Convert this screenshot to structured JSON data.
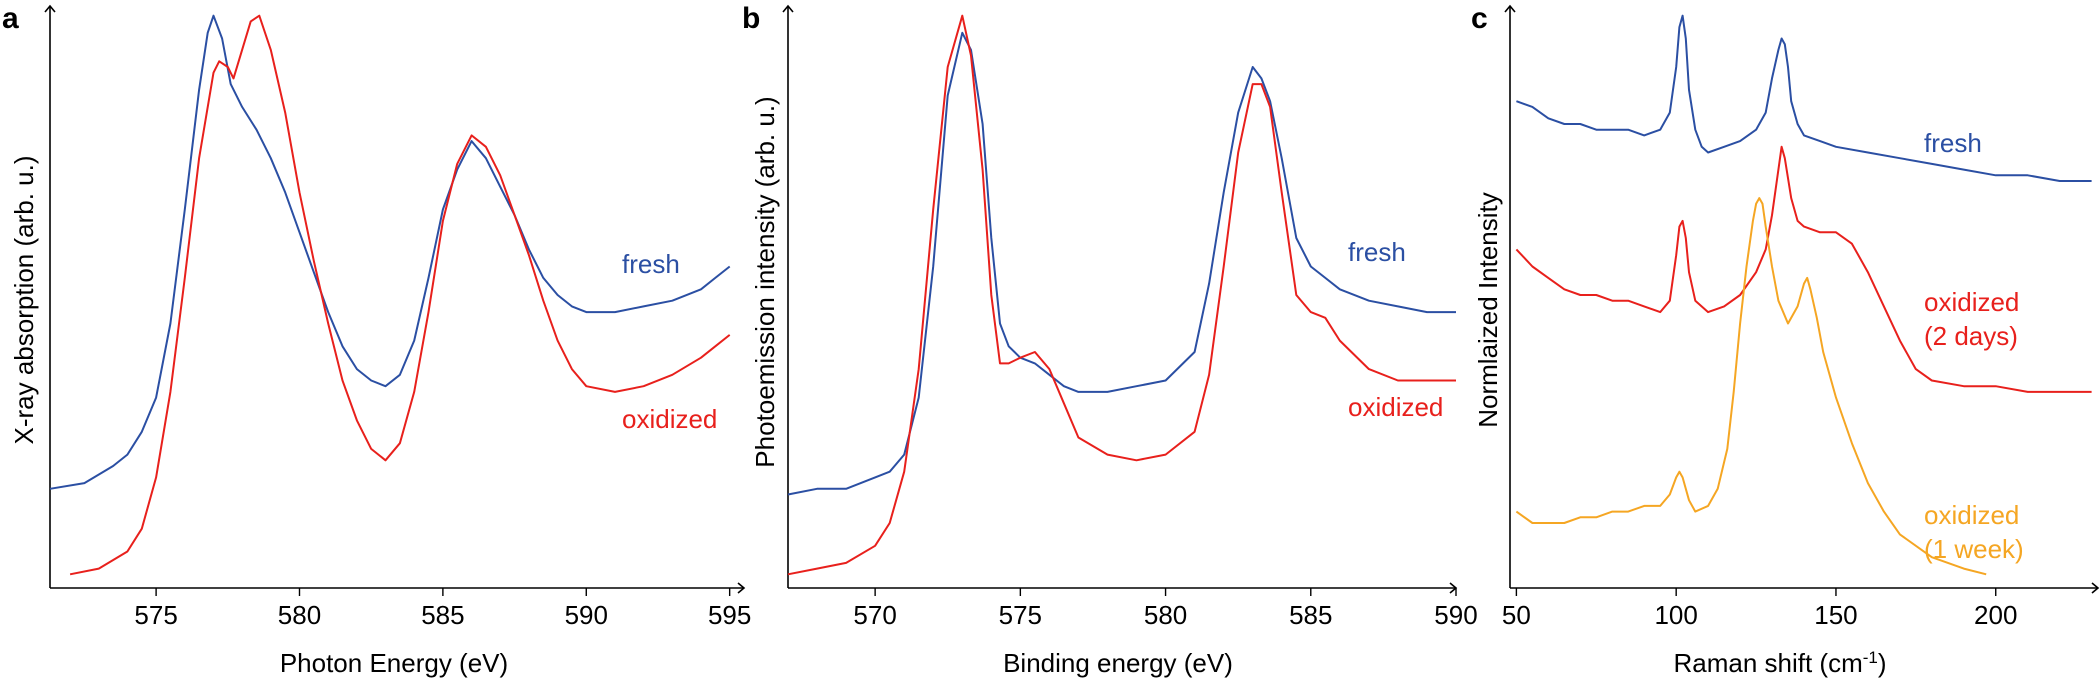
{
  "chart_data": [
    {
      "type": "line",
      "panel": "a",
      "xlabel": "Photon Energy (eV)",
      "ylabel": "X-ray absorption (arb. u.)",
      "xlim": [
        571.3,
        595.5
      ],
      "ylim": [
        0,
        1.0
      ],
      "xticks": [
        575,
        580,
        585,
        590,
        595
      ],
      "series": [
        {
          "name": "fresh",
          "color": "#2b4fa3",
          "x": [
            571.3,
            572.5,
            573.5,
            574.0,
            574.5,
            575.0,
            575.5,
            576.0,
            576.5,
            576.8,
            577.0,
            577.3,
            577.6,
            578.0,
            578.5,
            579.0,
            579.5,
            580.0,
            580.5,
            581.0,
            581.5,
            582.0,
            582.5,
            583.0,
            583.5,
            584.0,
            584.5,
            585.0,
            585.5,
            586.0,
            586.5,
            587.0,
            587.5,
            588.0,
            588.5,
            589.0,
            589.5,
            590.0,
            591.0,
            592.0,
            593.0,
            594.0,
            594.5,
            595.0
          ],
          "y": [
            0.16,
            0.17,
            0.2,
            0.22,
            0.26,
            0.32,
            0.45,
            0.65,
            0.86,
            0.96,
            0.99,
            0.95,
            0.87,
            0.83,
            0.79,
            0.74,
            0.68,
            0.61,
            0.54,
            0.47,
            0.41,
            0.37,
            0.35,
            0.34,
            0.36,
            0.42,
            0.53,
            0.65,
            0.72,
            0.77,
            0.74,
            0.69,
            0.64,
            0.58,
            0.53,
            0.5,
            0.48,
            0.47,
            0.47,
            0.48,
            0.49,
            0.51,
            0.53,
            0.55
          ]
        },
        {
          "name": "oxidized",
          "color": "#e8201c",
          "x": [
            572.0,
            573.0,
            574.0,
            574.5,
            575.0,
            575.5,
            576.0,
            576.5,
            577.0,
            577.2,
            577.5,
            577.7,
            578.0,
            578.3,
            578.6,
            579.0,
            579.5,
            580.0,
            580.5,
            581.0,
            581.5,
            582.0,
            582.5,
            583.0,
            583.5,
            584.0,
            584.5,
            585.0,
            585.5,
            586.0,
            586.5,
            587.0,
            587.5,
            588.0,
            588.5,
            589.0,
            589.5,
            590.0,
            591.0,
            592.0,
            593.0,
            594.0,
            594.5,
            595.0
          ],
          "y": [
            0.01,
            0.02,
            0.05,
            0.09,
            0.18,
            0.33,
            0.53,
            0.74,
            0.89,
            0.91,
            0.9,
            0.88,
            0.93,
            0.98,
            0.99,
            0.93,
            0.82,
            0.68,
            0.56,
            0.45,
            0.35,
            0.28,
            0.23,
            0.21,
            0.24,
            0.33,
            0.47,
            0.63,
            0.73,
            0.78,
            0.76,
            0.71,
            0.64,
            0.57,
            0.49,
            0.42,
            0.37,
            0.34,
            0.33,
            0.34,
            0.36,
            0.39,
            0.41,
            0.43
          ]
        }
      ],
      "labels": [
        {
          "text": "fresh",
          "series": "fresh"
        },
        {
          "text": "oxidized",
          "series": "oxidized"
        }
      ]
    },
    {
      "type": "line",
      "panel": "b",
      "xlabel": "Binding energy (eV)",
      "ylabel": "Photoemission intensity (arb. u.)",
      "xlim": [
        567.0,
        590.0
      ],
      "ylim": [
        0,
        1.0
      ],
      "xticks": [
        570,
        575,
        580,
        585,
        590
      ],
      "series": [
        {
          "name": "fresh",
          "color": "#2b4fa3",
          "x": [
            567.0,
            568.0,
            569.0,
            570.0,
            570.5,
            571.0,
            571.5,
            572.0,
            572.5,
            573.0,
            573.3,
            573.7,
            574.0,
            574.3,
            574.6,
            575.0,
            575.5,
            576.0,
            576.5,
            577.0,
            578.0,
            579.0,
            580.0,
            581.0,
            581.5,
            582.0,
            582.5,
            583.0,
            583.3,
            583.6,
            584.0,
            584.5,
            585.0,
            585.5,
            586.0,
            587.0,
            588.0,
            589.0,
            590.0
          ],
          "y": [
            0.15,
            0.16,
            0.16,
            0.18,
            0.19,
            0.22,
            0.32,
            0.55,
            0.85,
            0.96,
            0.93,
            0.8,
            0.6,
            0.45,
            0.41,
            0.39,
            0.38,
            0.36,
            0.34,
            0.33,
            0.33,
            0.34,
            0.35,
            0.4,
            0.52,
            0.68,
            0.82,
            0.9,
            0.88,
            0.84,
            0.74,
            0.6,
            0.55,
            0.53,
            0.51,
            0.49,
            0.48,
            0.47,
            0.47
          ]
        },
        {
          "name": "oxidized",
          "color": "#e8201c",
          "x": [
            567.0,
            568.0,
            569.0,
            570.0,
            570.5,
            571.0,
            571.5,
            572.0,
            572.5,
            573.0,
            573.3,
            573.7,
            574.0,
            574.3,
            574.6,
            575.0,
            575.5,
            576.0,
            576.5,
            577.0,
            578.0,
            579.0,
            580.0,
            581.0,
            581.5,
            582.0,
            582.5,
            583.0,
            583.3,
            583.6,
            584.0,
            584.5,
            585.0,
            585.5,
            586.0,
            587.0,
            588.0,
            589.0,
            590.0
          ],
          "y": [
            0.01,
            0.02,
            0.03,
            0.06,
            0.1,
            0.19,
            0.37,
            0.65,
            0.9,
            0.99,
            0.92,
            0.72,
            0.5,
            0.38,
            0.38,
            0.39,
            0.4,
            0.37,
            0.31,
            0.25,
            0.22,
            0.21,
            0.22,
            0.26,
            0.36,
            0.55,
            0.75,
            0.87,
            0.87,
            0.83,
            0.68,
            0.5,
            0.47,
            0.46,
            0.42,
            0.37,
            0.35,
            0.35,
            0.35
          ]
        }
      ],
      "labels": [
        {
          "text": "fresh",
          "series": "fresh"
        },
        {
          "text": "oxidized",
          "series": "oxidized"
        }
      ]
    },
    {
      "type": "line",
      "panel": "c",
      "xlabel": "Raman shift (cm",
      "xlabel_superscript": "-1",
      "xlabel_suffix": ")",
      "ylabel": "Normlaized Intensity",
      "xlim": [
        48.0,
        232.0
      ],
      "ylim": [
        0,
        1.0
      ],
      "xticks": [
        50,
        100,
        150,
        200
      ],
      "series": [
        {
          "name": "fresh",
          "color": "#2b4fa3",
          "x": [
            50,
            55,
            60,
            65,
            70,
            75,
            80,
            85,
            90,
            95,
            98,
            100,
            101,
            102,
            103,
            104,
            106,
            108,
            110,
            115,
            120,
            125,
            128,
            130,
            132,
            133,
            134,
            135,
            136,
            138,
            140,
            145,
            150,
            160,
            170,
            180,
            190,
            200,
            210,
            220,
            230
          ],
          "y": [
            0.84,
            0.83,
            0.81,
            0.8,
            0.8,
            0.79,
            0.79,
            0.79,
            0.78,
            0.79,
            0.82,
            0.9,
            0.97,
            0.99,
            0.95,
            0.86,
            0.79,
            0.76,
            0.75,
            0.76,
            0.77,
            0.79,
            0.82,
            0.88,
            0.93,
            0.95,
            0.94,
            0.9,
            0.84,
            0.8,
            0.78,
            0.77,
            0.76,
            0.75,
            0.74,
            0.73,
            0.72,
            0.71,
            0.71,
            0.7,
            0.7
          ]
        },
        {
          "name": "oxidized (2 days)",
          "color": "#e8201c",
          "x": [
            50,
            55,
            60,
            65,
            70,
            75,
            80,
            85,
            90,
            95,
            98,
            100,
            101,
            102,
            103,
            104,
            106,
            110,
            115,
            120,
            125,
            128,
            130,
            132,
            133,
            134,
            136,
            138,
            140,
            145,
            150,
            155,
            160,
            165,
            170,
            175,
            180,
            190,
            200,
            210,
            220,
            230
          ],
          "y": [
            0.58,
            0.55,
            0.53,
            0.51,
            0.5,
            0.5,
            0.49,
            0.49,
            0.48,
            0.47,
            0.49,
            0.57,
            0.62,
            0.63,
            0.6,
            0.54,
            0.49,
            0.47,
            0.48,
            0.5,
            0.54,
            0.58,
            0.64,
            0.72,
            0.76,
            0.74,
            0.67,
            0.63,
            0.62,
            0.61,
            0.61,
            0.59,
            0.54,
            0.48,
            0.42,
            0.37,
            0.35,
            0.34,
            0.34,
            0.33,
            0.33,
            0.33
          ]
        },
        {
          "name": "oxidized (1 week)",
          "color": "#f5a623",
          "x": [
            50,
            55,
            60,
            65,
            70,
            75,
            80,
            85,
            90,
            95,
            98,
            100,
            101,
            102,
            104,
            106,
            110,
            113,
            116,
            118,
            120,
            122,
            124,
            125,
            126,
            127,
            128,
            130,
            132,
            135,
            138,
            140,
            141,
            142,
            144,
            146,
            150,
            155,
            160,
            165,
            170,
            180,
            190,
            197
          ],
          "y": [
            0.12,
            0.1,
            0.1,
            0.1,
            0.11,
            0.11,
            0.12,
            0.12,
            0.13,
            0.13,
            0.15,
            0.18,
            0.19,
            0.18,
            0.14,
            0.12,
            0.13,
            0.16,
            0.23,
            0.33,
            0.45,
            0.55,
            0.63,
            0.66,
            0.67,
            0.66,
            0.62,
            0.55,
            0.49,
            0.45,
            0.48,
            0.52,
            0.53,
            0.51,
            0.46,
            0.4,
            0.32,
            0.24,
            0.17,
            0.12,
            0.08,
            0.04,
            0.02,
            0.01
          ]
        }
      ],
      "labels": [
        {
          "text": "fresh",
          "series": "fresh"
        },
        {
          "text": [
            "oxidized",
            "(2 days)"
          ],
          "series": "oxidized (2 days)"
        },
        {
          "text": [
            "oxidized",
            "(1 week)"
          ],
          "series": "oxidized (1 week)"
        }
      ]
    }
  ]
}
